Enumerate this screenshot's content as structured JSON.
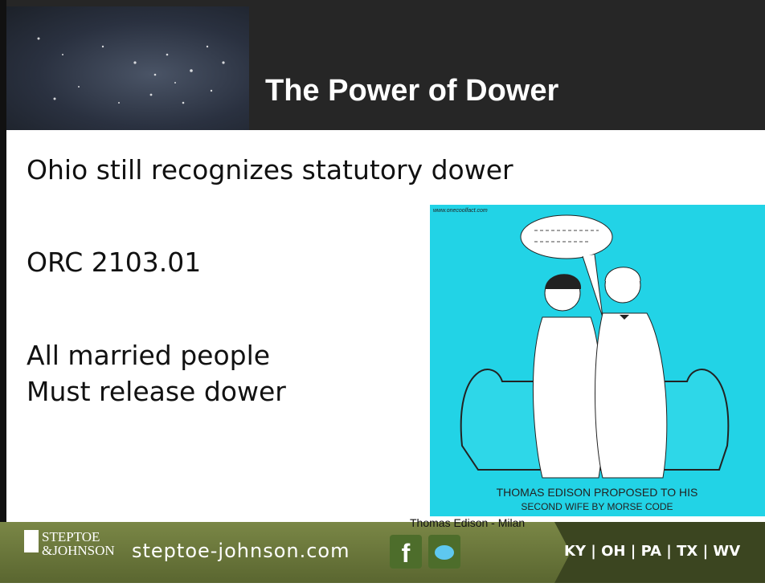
{
  "header": {
    "title": "The Power of Dower"
  },
  "body": {
    "lines": [
      "Ohio still recognizes statutory dower",
      "ORC 2103.01",
      "All married people",
      "Must release dower"
    ]
  },
  "cartoon": {
    "source": "www.onecoolfact.com",
    "caption": [
      "THOMAS EDISON PROPOSED TO HIS",
      "SECOND WIFE BY MORSE CODE"
    ],
    "credit": "Thomas Edison - Milan"
  },
  "footer": {
    "logo": [
      "STEPTOE",
      "&JOHNSON"
    ],
    "url": "steptoe-johnson.com",
    "states": "KY | OH | PA | TX | WV"
  }
}
